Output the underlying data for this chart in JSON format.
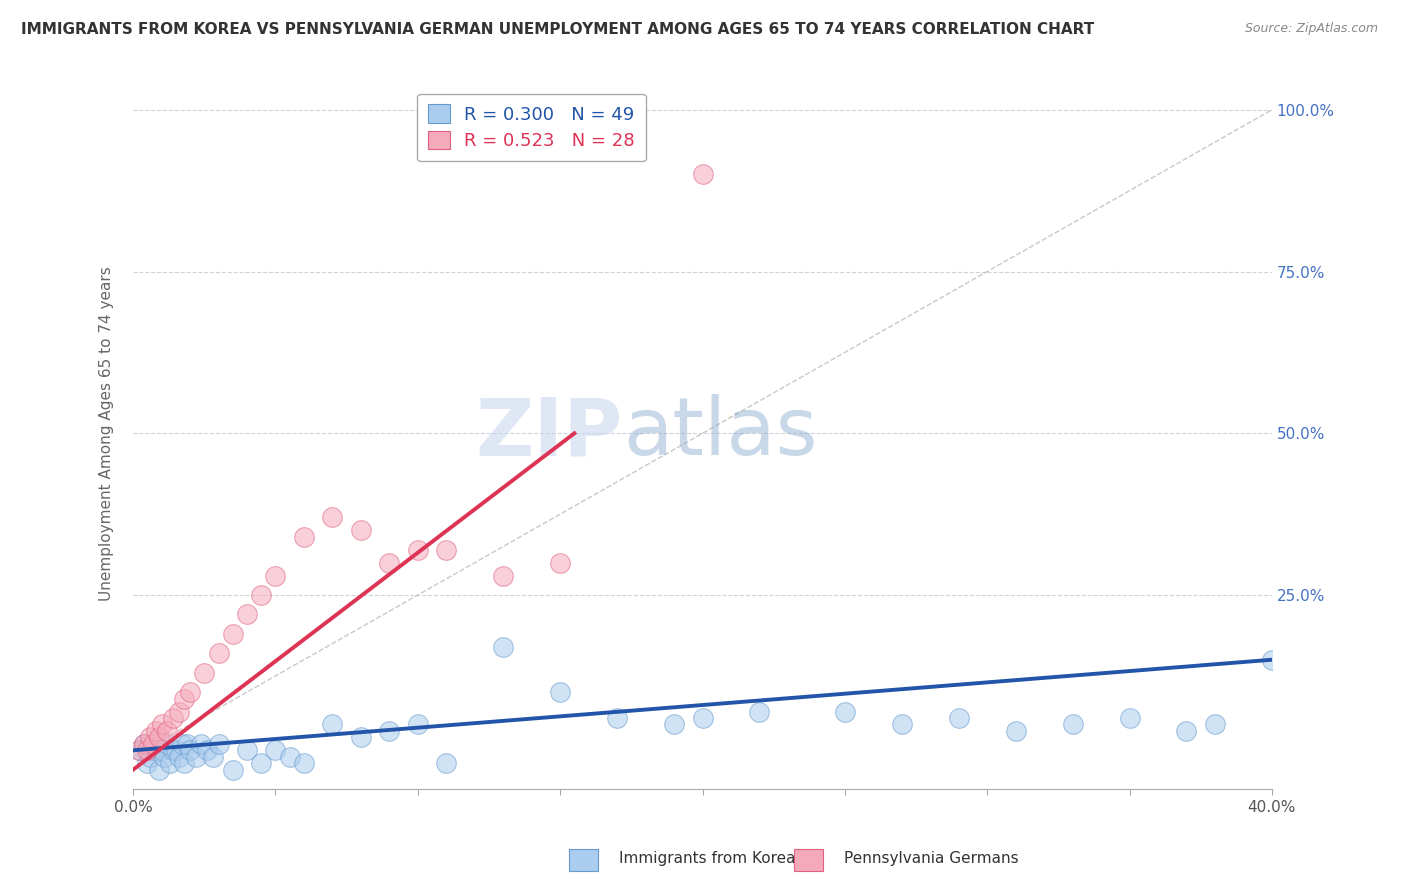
{
  "title": "IMMIGRANTS FROM KOREA VS PENNSYLVANIA GERMAN UNEMPLOYMENT AMONG AGES 65 TO 74 YEARS CORRELATION CHART",
  "source": "Source: ZipAtlas.com",
  "ylabel_label": "Unemployment Among Ages 65 to 74 years",
  "xmin": 0.0,
  "xmax": 0.4,
  "ymin": -0.05,
  "ymax": 1.05,
  "watermark_zip": "ZIP",
  "watermark_atlas": "atlas",
  "legend_blue_label": "R = 0.300   N = 49",
  "legend_pink_label": "R = 0.523   N = 28",
  "blue_scatter_x": [
    0.002,
    0.004,
    0.005,
    0.006,
    0.007,
    0.008,
    0.009,
    0.01,
    0.011,
    0.012,
    0.013,
    0.014,
    0.015,
    0.016,
    0.017,
    0.018,
    0.019,
    0.02,
    0.022,
    0.024,
    0.026,
    0.028,
    0.03,
    0.035,
    0.04,
    0.045,
    0.05,
    0.055,
    0.06,
    0.07,
    0.08,
    0.09,
    0.1,
    0.11,
    0.13,
    0.15,
    0.17,
    0.19,
    0.2,
    0.22,
    0.25,
    0.27,
    0.29,
    0.31,
    0.33,
    0.35,
    0.37,
    0.38,
    0.4
  ],
  "blue_scatter_y": [
    0.01,
    0.02,
    -0.01,
    0.0,
    0.01,
    0.015,
    -0.02,
    0.01,
    0.0,
    0.02,
    -0.01,
    0.01,
    0.01,
    0.0,
    0.02,
    -0.01,
    0.02,
    0.01,
    0.0,
    0.02,
    0.01,
    0.0,
    0.02,
    -0.02,
    0.01,
    -0.01,
    0.01,
    0.0,
    -0.01,
    0.05,
    0.03,
    0.04,
    0.05,
    -0.01,
    0.17,
    0.1,
    0.06,
    0.05,
    0.06,
    0.07,
    0.07,
    0.05,
    0.06,
    0.04,
    0.05,
    0.06,
    0.04,
    0.05,
    0.15
  ],
  "pink_scatter_x": [
    0.002,
    0.004,
    0.005,
    0.006,
    0.007,
    0.008,
    0.009,
    0.01,
    0.012,
    0.014,
    0.016,
    0.018,
    0.02,
    0.025,
    0.03,
    0.035,
    0.04,
    0.045,
    0.05,
    0.06,
    0.07,
    0.08,
    0.09,
    0.1,
    0.11,
    0.13,
    0.15,
    0.2
  ],
  "pink_scatter_y": [
    0.01,
    0.02,
    0.01,
    0.03,
    0.02,
    0.04,
    0.03,
    0.05,
    0.04,
    0.06,
    0.07,
    0.09,
    0.1,
    0.13,
    0.16,
    0.19,
    0.22,
    0.25,
    0.28,
    0.34,
    0.37,
    0.35,
    0.3,
    0.32,
    0.32,
    0.28,
    0.3,
    0.9
  ],
  "blue_line_x": [
    0.0,
    0.4
  ],
  "blue_line_y": [
    0.01,
    0.15
  ],
  "pink_line_x": [
    0.0,
    0.155
  ],
  "pink_line_y": [
    -0.02,
    0.5
  ],
  "ref_line_x": [
    0.0,
    0.4
  ],
  "ref_line_y": [
    0.0,
    1.0
  ],
  "blue_fill_color": "#aaccee",
  "blue_edge_color": "#6699cc",
  "pink_fill_color": "#f5aabb",
  "pink_edge_color": "#e06080",
  "blue_line_color": "#2255aa",
  "pink_line_color": "#dd3355",
  "ref_line_color": "#bbbbbb",
  "background_color": "#ffffff",
  "grid_color": "#ccccdd",
  "ytick_vals": [
    1.0,
    0.75,
    0.5,
    0.25
  ],
  "ytick_labels": [
    "100.0%",
    "75.0%",
    "50.0%",
    "25.0%"
  ]
}
